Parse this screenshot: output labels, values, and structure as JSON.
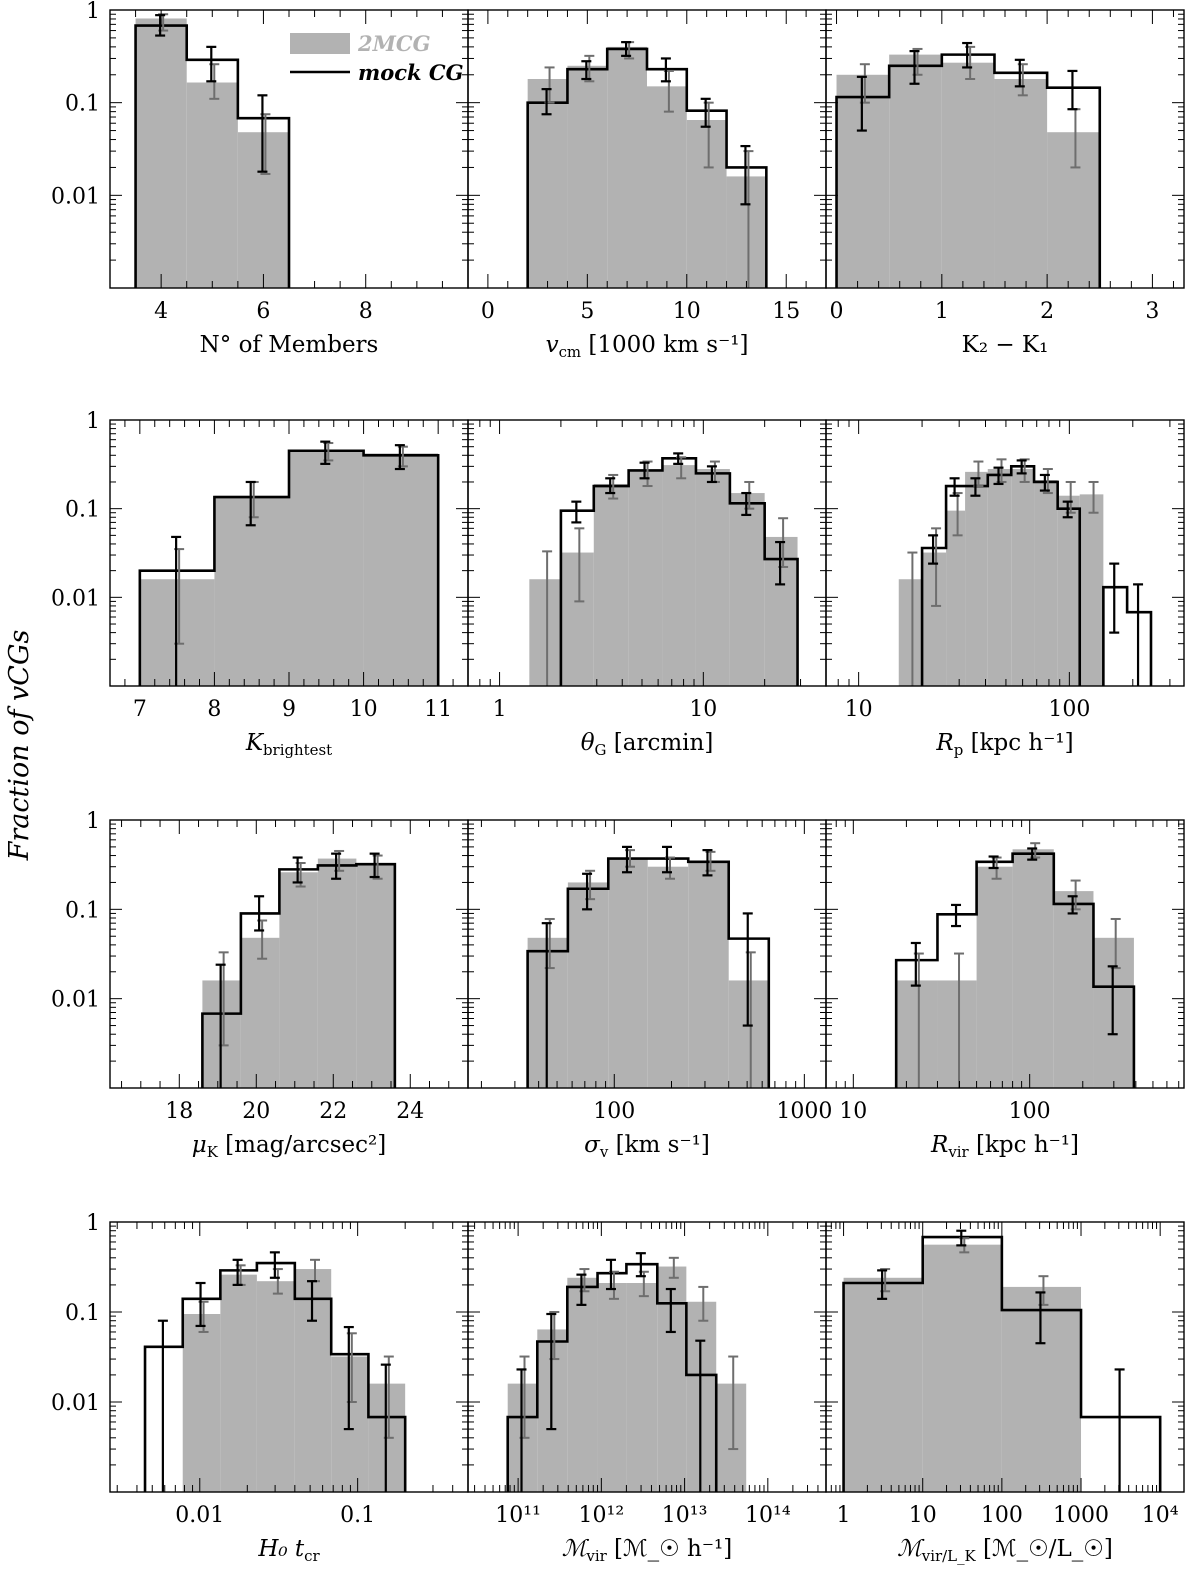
{
  "figure": {
    "ylabel": "Fraction of vCGs",
    "legend": {
      "items": [
        {
          "label": "2MCG",
          "style": "grey-fill",
          "color": "#b2b2b2"
        },
        {
          "label": "mock CG",
          "style": "black-line",
          "color": "#000000"
        }
      ]
    },
    "colors": {
      "obs_fill": "#b2b2b2",
      "obs_err": "#6e6e6e",
      "mock": "#000000"
    }
  },
  "chart_data": [
    {
      "type": "bar",
      "id": "members",
      "xlabel": "N° of Members",
      "xscale": "linear",
      "xlim": [
        3,
        10
      ],
      "xticks": [
        "4",
        "6",
        "8"
      ],
      "yscale": "log",
      "ylim": [
        0.001,
        1
      ],
      "yticks": [
        "1",
        "0.1",
        "0.01"
      ],
      "bins": [
        3.5,
        4.5,
        5.5,
        6.5
      ],
      "obs": [
        0.81,
        0.165,
        0.048
      ],
      "obs_err": [
        [
          0.6,
          0.9
        ],
        [
          0.11,
          0.26
        ],
        [
          0.017,
          0.075
        ]
      ],
      "mock": [
        0.68,
        0.29,
        0.068
      ],
      "mock_err": [
        [
          0.53,
          0.88
        ],
        [
          0.17,
          0.4
        ],
        [
          0.018,
          0.12
        ]
      ]
    },
    {
      "type": "bar",
      "id": "vcm",
      "xlabel": "v_cm [1000 km s⁻¹]",
      "xscale": "linear",
      "xlim": [
        -1,
        17
      ],
      "xticks": [
        "0",
        "5",
        "10",
        "15"
      ],
      "yscale": "log",
      "ylim": [
        0.001,
        1
      ],
      "yticks": [],
      "bins": [
        2,
        4,
        6,
        8,
        10,
        12,
        14
      ],
      "obs": [
        0.18,
        0.25,
        0.4,
        0.15,
        0.065,
        0.016
      ],
      "obs_err": [
        [
          0.1,
          0.24
        ],
        [
          0.17,
          0.32
        ],
        [
          0.3,
          0.45
        ],
        [
          0.08,
          0.22
        ],
        [
          0.02,
          0.1
        ],
        [
          0.001,
          0.03
        ]
      ],
      "mock": [
        0.1,
        0.23,
        0.38,
        0.23,
        0.082,
        0.02
      ],
      "mock_err": [
        [
          0.075,
          0.14
        ],
        [
          0.18,
          0.28
        ],
        [
          0.32,
          0.45
        ],
        [
          0.17,
          0.3
        ],
        [
          0.055,
          0.11
        ],
        [
          0.008,
          0.034
        ]
      ]
    },
    {
      "type": "bar",
      "id": "dk",
      "xlabel": "K₂ − K₁",
      "xscale": "linear",
      "xlim": [
        -0.1,
        3.3
      ],
      "xticks": [
        "0",
        "1",
        "2",
        "3"
      ],
      "yscale": "log",
      "ylim": [
        0.001,
        1
      ],
      "yticks": [],
      "bins": [
        0,
        0.5,
        1,
        1.5,
        2,
        2.5
      ],
      "obs": [
        0.2,
        0.33,
        0.27,
        0.18,
        0.048
      ],
      "obs_err": [
        [
          0.1,
          0.26
        ],
        [
          0.2,
          0.38
        ],
        [
          0.18,
          0.4
        ],
        [
          0.12,
          0.26
        ],
        [
          0.02,
          0.085
        ]
      ],
      "mock": [
        0.115,
        0.25,
        0.33,
        0.21,
        0.145
      ],
      "mock_err": [
        [
          0.05,
          0.19
        ],
        [
          0.16,
          0.36
        ],
        [
          0.24,
          0.44
        ],
        [
          0.15,
          0.29
        ],
        [
          0.085,
          0.22
        ]
      ]
    },
    {
      "type": "bar",
      "id": "kbright",
      "xlabel": "K_brightest",
      "xscale": "linear",
      "xlim": [
        6.6,
        11.4
      ],
      "xticks": [
        "7",
        "8",
        "9",
        "10",
        "11"
      ],
      "yscale": "log",
      "ylim": [
        0.001,
        1
      ],
      "yticks": [
        "1",
        "0.1",
        "0.01"
      ],
      "bins": [
        7,
        8,
        9,
        10,
        11
      ],
      "obs": [
        0.016,
        0.14,
        0.45,
        0.42
      ],
      "obs_err": [
        [
          0.003,
          0.035
        ],
        [
          0.08,
          0.2
        ],
        [
          0.35,
          0.55
        ],
        [
          0.3,
          0.5
        ]
      ],
      "mock": [
        0.02,
        0.135,
        0.45,
        0.4
      ],
      "mock_err": [
        [
          0.001,
          0.048
        ],
        [
          0.065,
          0.2
        ],
        [
          0.32,
          0.57
        ],
        [
          0.28,
          0.52
        ]
      ]
    },
    {
      "type": "bar",
      "id": "theta",
      "xlabel": "θ_G [arcmin]",
      "xscale": "log",
      "xlim": [
        0.7,
        40
      ],
      "xticks": [
        "1",
        "10"
      ],
      "yscale": "log",
      "ylim": [
        0.001,
        1
      ],
      "yticks": [],
      "bins": [
        1.4,
        2,
        2.9,
        4.3,
        6.3,
        9.2,
        13.5,
        20,
        29
      ],
      "obs": [
        0.016,
        0.032,
        0.19,
        0.27,
        0.31,
        0.28,
        0.15,
        0.048
      ],
      "obs_err": [
        [
          0.001,
          0.033
        ],
        [
          0.009,
          0.06
        ],
        [
          0.13,
          0.24
        ],
        [
          0.18,
          0.34
        ],
        [
          0.22,
          0.38
        ],
        [
          0.2,
          0.34
        ],
        [
          0.1,
          0.2
        ],
        [
          0.022,
          0.078
        ]
      ],
      "mock": [
        0.0,
        0.095,
        0.18,
        0.27,
        0.37,
        0.25,
        0.115,
        0.027
      ],
      "mock_err": [
        null,
        [
          0.07,
          0.12
        ],
        [
          0.15,
          0.22
        ],
        [
          0.22,
          0.33
        ],
        [
          0.32,
          0.42
        ],
        [
          0.2,
          0.3
        ],
        [
          0.085,
          0.15
        ],
        [
          0.014,
          0.042
        ]
      ]
    },
    {
      "type": "bar",
      "id": "rp",
      "xlabel": "R_p [kpc h⁻¹]",
      "xscale": "log",
      "xlim": [
        7,
        350
      ],
      "xticks": [
        "10",
        "100"
      ],
      "yscale": "log",
      "ylim": [
        0.001,
        1
      ],
      "yticks": [],
      "bins": [
        15.5,
        20,
        26,
        32,
        41,
        53,
        68,
        88,
        112,
        145,
        188,
        244,
        315
      ],
      "obs": [
        0.016,
        0.032,
        0.095,
        0.26,
        0.28,
        0.28,
        0.21,
        0.14,
        0.145,
        0,
        0,
        0
      ],
      "obs_err": [
        [
          0.001,
          0.032
        ],
        [
          0.008,
          0.06
        ],
        [
          0.05,
          0.15
        ],
        [
          0.18,
          0.34
        ],
        [
          0.2,
          0.36
        ],
        [
          0.2,
          0.36
        ],
        [
          0.15,
          0.28
        ],
        [
          0.09,
          0.2
        ],
        [
          0.09,
          0.2
        ],
        null,
        null,
        null
      ],
      "mock": [
        0.0,
        0.036,
        0.18,
        0.18,
        0.24,
        0.3,
        0.2,
        0.1,
        0,
        0.013,
        0.0068,
        0
      ],
      "mock_err": [
        null,
        [
          0.024,
          0.05
        ],
        [
          0.14,
          0.22
        ],
        [
          0.14,
          0.22
        ],
        [
          0.19,
          0.29
        ],
        [
          0.25,
          0.35
        ],
        [
          0.16,
          0.24
        ],
        [
          0.08,
          0.12
        ],
        null,
        [
          0.004,
          0.024
        ],
        [
          0.001,
          0.014
        ],
        null
      ]
    },
    {
      "type": "bar",
      "id": "muk",
      "xlabel": "μ_K [mag/arcsec²]",
      "xscale": "linear",
      "xlim": [
        16.2,
        25.5
      ],
      "xticks": [
        "18",
        "20",
        "22",
        "24"
      ],
      "yscale": "log",
      "ylim": [
        0.001,
        1
      ],
      "yticks": [
        "1",
        "0.1",
        "0.01"
      ],
      "bins": [
        18.6,
        19.6,
        20.6,
        21.6,
        22.6,
        23.6
      ],
      "obs": [
        0.016,
        0.048,
        0.26,
        0.37,
        0.32
      ],
      "obs_err": [
        [
          0.003,
          0.033
        ],
        [
          0.028,
          0.075
        ],
        [
          0.18,
          0.33
        ],
        [
          0.27,
          0.45
        ],
        [
          0.22,
          0.4
        ]
      ],
      "mock": [
        0.0068,
        0.09,
        0.28,
        0.31,
        0.32
      ],
      "mock_err": [
        [
          0.001,
          0.024
        ],
        [
          0.058,
          0.14
        ],
        [
          0.2,
          0.38
        ],
        [
          0.22,
          0.42
        ],
        [
          0.23,
          0.42
        ]
      ]
    },
    {
      "type": "bar",
      "id": "sigma",
      "xlabel": "σ_v [km s⁻¹]",
      "xscale": "log",
      "xlim": [
        17,
        1300
      ],
      "xticks": [
        "100",
        "1000"
      ],
      "yscale": "log",
      "ylim": [
        0.001,
        1
      ],
      "yticks": [],
      "bins": [
        35,
        57,
        93,
        150,
        245,
        400,
        650,
        1060
      ],
      "obs": [
        0.048,
        0.2,
        0.38,
        0.3,
        0.35,
        0.016
      ],
      "obs_err": [
        [
          0.022,
          0.078
        ],
        [
          0.13,
          0.27
        ],
        [
          0.3,
          0.46
        ],
        [
          0.22,
          0.38
        ],
        [
          0.27,
          0.44
        ],
        [
          0.001,
          0.033
        ]
      ],
      "mock": [
        0.034,
        0.17,
        0.37,
        0.37,
        0.34,
        0.047
      ],
      "mock_err": [
        [
          0.001,
          0.07
        ],
        [
          0.1,
          0.25
        ],
        [
          0.26,
          0.5
        ],
        [
          0.26,
          0.5
        ],
        [
          0.24,
          0.46
        ],
        [
          0.005,
          0.09
        ]
      ]
    },
    {
      "type": "bar",
      "id": "rvir",
      "xlabel": "R_vir [kpc h⁻¹]",
      "xscale": "log",
      "xlim": [
        7,
        750
      ],
      "xticks": [
        "10",
        "100"
      ],
      "yscale": "log",
      "ylim": [
        0.001,
        1
      ],
      "yticks": [],
      "bins": [
        17.5,
        30,
        50,
        80,
        137,
        230,
        390,
        650
      ],
      "obs": [
        0.016,
        0.016,
        0.3,
        0.47,
        0.16,
        0.048,
        0
      ],
      "obs_err": [
        [
          0.001,
          0.032
        ],
        [
          0.001,
          0.032
        ],
        [
          0.22,
          0.38
        ],
        [
          0.38,
          0.55
        ],
        [
          0.1,
          0.21
        ],
        [
          0.022,
          0.078
        ],
        null
      ],
      "mock": [
        0.027,
        0.088,
        0.34,
        0.42,
        0.115,
        0.0136,
        0
      ],
      "mock_err": [
        [
          0.014,
          0.042
        ],
        [
          0.065,
          0.112
        ],
        [
          0.29,
          0.39
        ],
        [
          0.36,
          0.48
        ],
        [
          0.09,
          0.14
        ],
        [
          0.004,
          0.023
        ],
        null
      ]
    },
    {
      "type": "bar",
      "id": "h0tcr",
      "xlabel": "H₀ t_cr",
      "xscale": "log",
      "xlim": [
        0.0027,
        0.5
      ],
      "xticks": [
        "0.01",
        "0.1"
      ],
      "yscale": "log",
      "ylim": [
        0.001,
        1
      ],
      "yticks": [
        "1",
        "0.1",
        "0.01"
      ],
      "bins": [
        0.0045,
        0.0078,
        0.0135,
        0.023,
        0.04,
        0.068,
        0.117,
        0.2,
        0.34
      ],
      "obs": [
        0.0,
        0.095,
        0.26,
        0.22,
        0.3,
        0.032,
        0.016
      ],
      "obs_err": [
        null,
        [
          0.06,
          0.13
        ],
        [
          0.2,
          0.33
        ],
        [
          0.16,
          0.3
        ],
        [
          0.22,
          0.38
        ],
        [
          0.01,
          0.058
        ],
        [
          0.004,
          0.032
        ]
      ],
      "mock": [
        0.041,
        0.14,
        0.29,
        0.35,
        0.14,
        0.034,
        0.0068
      ],
      "mock_err": [
        [
          0.001,
          0.08
        ],
        [
          0.07,
          0.21
        ],
        [
          0.2,
          0.38
        ],
        [
          0.24,
          0.46
        ],
        [
          0.08,
          0.22
        ],
        [
          0.005,
          0.068
        ],
        [
          0.001,
          0.026
        ]
      ]
    },
    {
      "type": "bar",
      "id": "mvir",
      "xlabel": "ℳ_vir [ℳ_☉ h⁻¹]",
      "xscale": "log",
      "xlim": [
        25000000000.0,
        500000000000000.0
      ],
      "xticks": [
        "10¹¹",
        "10¹²",
        "10¹³",
        "10¹⁴"
      ],
      "yscale": "log",
      "ylim": [
        0.001,
        1
      ],
      "yticks": [],
      "bins": [
        75000000000.0,
        170000000000.0,
        390000000000.0,
        900000000000.0,
        2000000000000.0,
        4700000000000.0,
        10500000000000.0,
        24000000000000.0,
        55000000000000.0,
        125000000000000.0
      ],
      "obs": [
        0.016,
        0.064,
        0.24,
        0.21,
        0.21,
        0.32,
        0.13,
        0.016
      ],
      "obs_err": [
        [
          0.004,
          0.032
        ],
        [
          0.03,
          0.1
        ],
        [
          0.17,
          0.3
        ],
        [
          0.14,
          0.28
        ],
        [
          0.15,
          0.28
        ],
        [
          0.24,
          0.4
        ],
        [
          0.08,
          0.19
        ],
        [
          0.003,
          0.032
        ]
      ],
      "mock": [
        0.0068,
        0.047,
        0.19,
        0.27,
        0.34,
        0.125,
        0.02,
        0
      ],
      "mock_err": [
        [
          0.001,
          0.023
        ],
        [
          0.005,
          0.095
        ],
        [
          0.12,
          0.26
        ],
        [
          0.18,
          0.38
        ],
        [
          0.25,
          0.45
        ],
        [
          0.06,
          0.18
        ],
        [
          0.001,
          0.048
        ],
        null
      ]
    },
    {
      "type": "bar",
      "id": "mvirlk",
      "xlabel": "ℳ_vir/L_K [ℳ_☉/L_☉]",
      "xscale": "log",
      "xlim": [
        0.6,
        20000
      ],
      "xticks": [
        "1",
        "10",
        "100",
        "1000",
        "10⁴"
      ],
      "yscale": "log",
      "ylim": [
        0.001,
        1
      ],
      "yticks": [],
      "bins": [
        1,
        10,
        100,
        1000,
        10000
      ],
      "obs": [
        0.24,
        0.56,
        0.19,
        0
      ],
      "obs_err": [
        [
          0.17,
          0.3
        ],
        [
          0.46,
          0.66
        ],
        [
          0.12,
          0.25
        ],
        null
      ],
      "mock": [
        0.21,
        0.68,
        0.105,
        0.0068
      ],
      "mock_err": [
        [
          0.14,
          0.29
        ],
        [
          0.55,
          0.8
        ],
        [
          0.045,
          0.165
        ],
        [
          0.001,
          0.023
        ]
      ]
    }
  ]
}
